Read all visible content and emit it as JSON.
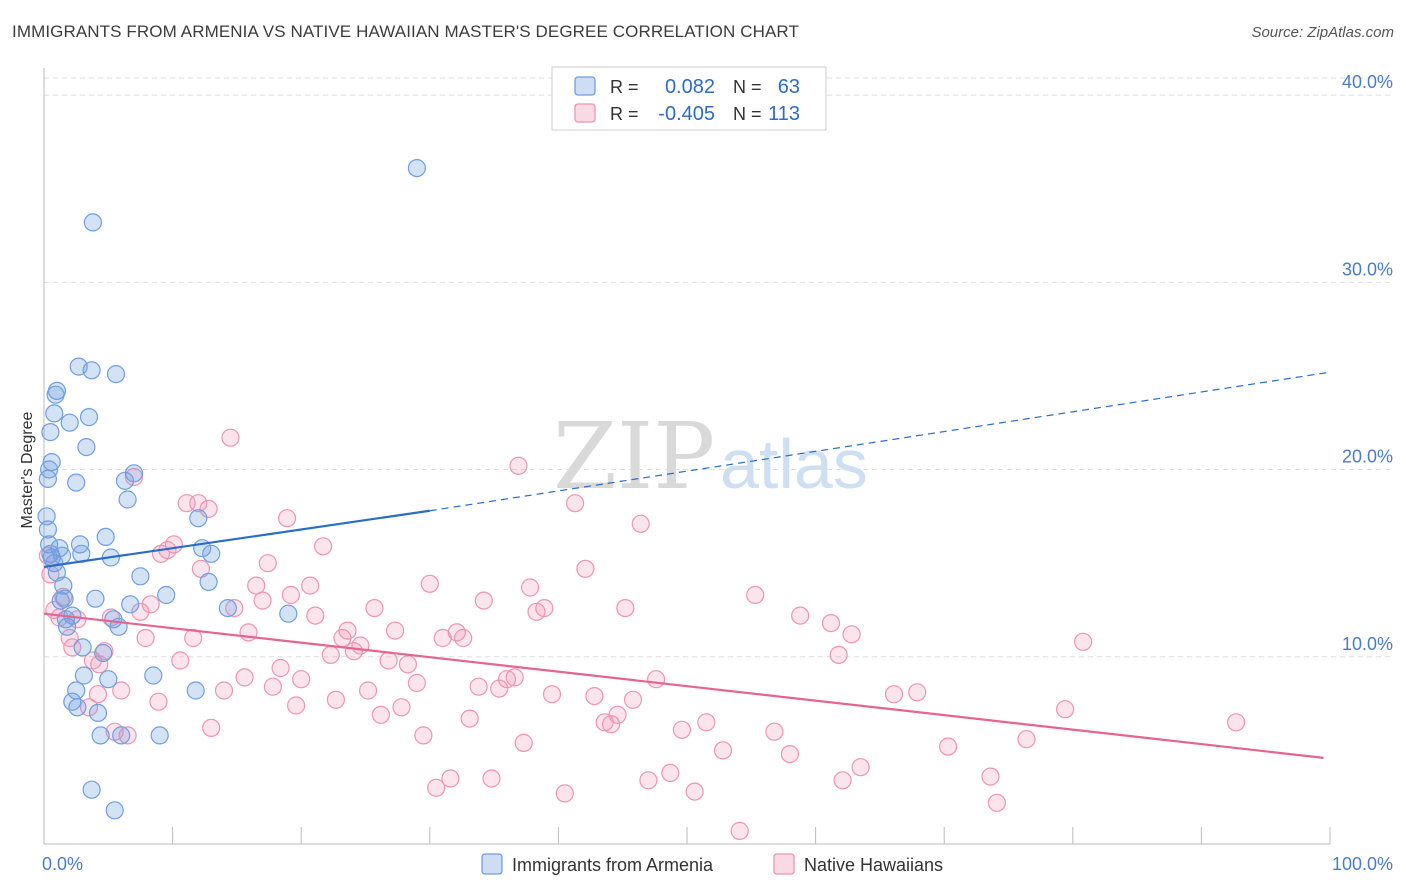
{
  "title": "IMMIGRANTS FROM ARMENIA VS NATIVE HAWAIIAN MASTER'S DEGREE CORRELATION CHART",
  "source": "Source: ZipAtlas.com",
  "watermark": {
    "zip": "ZIP",
    "atlas": "atlas"
  },
  "colors": {
    "blue": "#6f9fe0",
    "blue_line": "#2a6cc9",
    "pink": "#ef94b2",
    "pink_line": "#e56592",
    "tick": "#4a7cc9",
    "grid": "#dedede"
  },
  "chart_data": {
    "type": "scatter",
    "title": "IMMIGRANTS FROM ARMENIA VS NATIVE HAWAIIAN MASTER'S DEGREE CORRELATION CHART",
    "xlabel": "",
    "ylabel": "Master's Degree",
    "xlim": [
      0,
      100
    ],
    "ylim": [
      0,
      41.5
    ],
    "x_tick_labels": {
      "left": "0.0%",
      "right": "100.0%"
    },
    "y_ticks": [
      {
        "value": 10,
        "label": "10.0%"
      },
      {
        "value": 20,
        "label": "20.0%"
      },
      {
        "value": 30,
        "label": "30.0%"
      },
      {
        "value": 40,
        "label": "40.0%"
      }
    ],
    "grid": true,
    "legend_top": [
      {
        "r_label": "R =",
        "r_value": "0.082",
        "n_label": "N =",
        "n_value": "63"
      },
      {
        "r_label": "R =",
        "r_value": "-0.405",
        "n_label": "N =",
        "n_value": "113"
      }
    ],
    "series": [
      {
        "name": "Immigrants from Armenia",
        "trend": {
          "x0": 0,
          "y0": 14.8,
          "x1": 30,
          "y1": 17.8,
          "dash_to_x": 100,
          "dash_to_y": 25.2
        },
        "points": [
          [
            0.2,
            17.5
          ],
          [
            0.3,
            16.8
          ],
          [
            0.4,
            16.0
          ],
          [
            0.5,
            15.5
          ],
          [
            0.6,
            15.3
          ],
          [
            0.8,
            15.0
          ],
          [
            1.0,
            14.5
          ],
          [
            0.3,
            19.5
          ],
          [
            0.4,
            20.0
          ],
          [
            0.6,
            20.4
          ],
          [
            0.5,
            22.0
          ],
          [
            0.8,
            23.0
          ],
          [
            0.9,
            24.0
          ],
          [
            1.0,
            24.2
          ],
          [
            1.2,
            15.8
          ],
          [
            1.4,
            15.4
          ],
          [
            1.5,
            13.8
          ],
          [
            1.3,
            13.0
          ],
          [
            1.6,
            13.1
          ],
          [
            1.7,
            12.0
          ],
          [
            1.8,
            11.6
          ],
          [
            2.0,
            22.5
          ],
          [
            2.2,
            12.2
          ],
          [
            2.5,
            19.3
          ],
          [
            2.7,
            25.5
          ],
          [
            2.8,
            16.0
          ],
          [
            2.9,
            15.5
          ],
          [
            3.0,
            10.5
          ],
          [
            3.1,
            9.0
          ],
          [
            3.3,
            21.2
          ],
          [
            3.5,
            22.8
          ],
          [
            3.7,
            25.3
          ],
          [
            3.8,
            33.2
          ],
          [
            4.0,
            13.1
          ],
          [
            4.2,
            7.0
          ],
          [
            4.4,
            5.8
          ],
          [
            4.6,
            10.2
          ],
          [
            4.8,
            16.4
          ],
          [
            5.0,
            8.8
          ],
          [
            5.2,
            15.3
          ],
          [
            5.4,
            12.0
          ],
          [
            5.6,
            25.1
          ],
          [
            5.8,
            11.6
          ],
          [
            6.0,
            5.8
          ],
          [
            6.3,
            19.4
          ],
          [
            6.5,
            18.4
          ],
          [
            6.7,
            12.8
          ],
          [
            5.5,
            1.8
          ],
          [
            2.5,
            8.2
          ],
          [
            2.2,
            7.6
          ],
          [
            2.6,
            7.3
          ],
          [
            7.0,
            19.8
          ],
          [
            7.5,
            14.3
          ],
          [
            8.5,
            9.0
          ],
          [
            9.0,
            5.8
          ],
          [
            9.5,
            13.3
          ],
          [
            11.8,
            8.2
          ],
          [
            12.0,
            17.4
          ],
          [
            12.3,
            15.8
          ],
          [
            12.8,
            14.0
          ],
          [
            13.0,
            15.5
          ],
          [
            14.3,
            12.6
          ],
          [
            19.0,
            12.3
          ],
          [
            29.0,
            36.1
          ],
          [
            3.7,
            2.9
          ]
        ]
      },
      {
        "name": "Native Hawaiians",
        "trend": {
          "x0": 0,
          "y0": 12.3,
          "x1": 99.5,
          "y1": 4.6
        },
        "points": [
          [
            0.3,
            15.4
          ],
          [
            0.5,
            14.4
          ],
          [
            0.8,
            12.5
          ],
          [
            1.2,
            12.1
          ],
          [
            1.5,
            13.2
          ],
          [
            2.0,
            11.0
          ],
          [
            2.2,
            10.5
          ],
          [
            2.6,
            12.0
          ],
          [
            3.5,
            7.3
          ],
          [
            3.8,
            9.8
          ],
          [
            4.2,
            8.0
          ],
          [
            4.7,
            10.3
          ],
          [
            5.2,
            12.1
          ],
          [
            5.5,
            6.0
          ],
          [
            6.0,
            8.2
          ],
          [
            6.5,
            5.8
          ],
          [
            7.0,
            19.6
          ],
          [
            7.5,
            12.4
          ],
          [
            7.9,
            11.0
          ],
          [
            8.3,
            12.8
          ],
          [
            8.9,
            7.6
          ],
          [
            9.1,
            15.5
          ],
          [
            9.6,
            15.7
          ],
          [
            10.1,
            16.0
          ],
          [
            10.6,
            9.8
          ],
          [
            11.1,
            18.2
          ],
          [
            11.6,
            11.0
          ],
          [
            12.2,
            14.7
          ],
          [
            12.8,
            17.9
          ],
          [
            13.0,
            6.2
          ],
          [
            14.0,
            8.2
          ],
          [
            14.5,
            21.7
          ],
          [
            14.8,
            12.6
          ],
          [
            15.6,
            8.9
          ],
          [
            15.9,
            11.3
          ],
          [
            16.5,
            13.8
          ],
          [
            17.0,
            13.0
          ],
          [
            17.4,
            15.0
          ],
          [
            17.8,
            8.4
          ],
          [
            18.4,
            9.4
          ],
          [
            18.9,
            17.4
          ],
          [
            19.2,
            13.3
          ],
          [
            19.6,
            7.4
          ],
          [
            20.0,
            8.8
          ],
          [
            20.7,
            13.8
          ],
          [
            21.1,
            12.2
          ],
          [
            21.7,
            15.9
          ],
          [
            22.3,
            10.1
          ],
          [
            22.7,
            7.7
          ],
          [
            23.2,
            11.0
          ],
          [
            23.6,
            11.4
          ],
          [
            24.1,
            10.3
          ],
          [
            24.6,
            10.6
          ],
          [
            25.2,
            8.2
          ],
          [
            25.7,
            12.6
          ],
          [
            26.2,
            6.9
          ],
          [
            26.8,
            9.8
          ],
          [
            27.3,
            11.4
          ],
          [
            27.8,
            7.3
          ],
          [
            28.3,
            9.6
          ],
          [
            29.0,
            8.6
          ],
          [
            29.5,
            5.8
          ],
          [
            30.0,
            13.9
          ],
          [
            30.5,
            3.0
          ],
          [
            31.0,
            11.0
          ],
          [
            31.6,
            3.5
          ],
          [
            32.1,
            11.3
          ],
          [
            32.6,
            11.0
          ],
          [
            33.1,
            6.7
          ],
          [
            33.8,
            8.4
          ],
          [
            34.2,
            13.0
          ],
          [
            34.8,
            3.5
          ],
          [
            35.4,
            8.3
          ],
          [
            36.0,
            8.8
          ],
          [
            36.6,
            8.9
          ],
          [
            37.3,
            5.4
          ],
          [
            37.8,
            13.7
          ],
          [
            38.3,
            12.4
          ],
          [
            38.9,
            12.6
          ],
          [
            39.5,
            8.0
          ],
          [
            40.5,
            2.7
          ],
          [
            41.3,
            18.2
          ],
          [
            42.1,
            14.7
          ],
          [
            42.8,
            7.9
          ],
          [
            43.6,
            6.5
          ],
          [
            44.1,
            6.4
          ],
          [
            44.6,
            6.9
          ],
          [
            45.2,
            12.6
          ],
          [
            45.8,
            7.7
          ],
          [
            46.4,
            17.1
          ],
          [
            47.0,
            3.4
          ],
          [
            47.6,
            8.8
          ],
          [
            48.7,
            3.8
          ],
          [
            49.6,
            6.1
          ],
          [
            50.6,
            2.8
          ],
          [
            51.5,
            6.5
          ],
          [
            52.8,
            5.0
          ],
          [
            54.1,
            0.7
          ],
          [
            55.3,
            13.3
          ],
          [
            56.8,
            6.0
          ],
          [
            58.0,
            4.8
          ],
          [
            58.8,
            12.2
          ],
          [
            61.2,
            11.8
          ],
          [
            61.8,
            10.1
          ],
          [
            62.1,
            3.4
          ],
          [
            62.8,
            11.2
          ],
          [
            63.5,
            4.1
          ],
          [
            66.1,
            8.0
          ],
          [
            67.9,
            8.1
          ],
          [
            70.3,
            5.2
          ],
          [
            73.6,
            3.6
          ],
          [
            74.1,
            2.2
          ],
          [
            76.4,
            5.6
          ],
          [
            79.4,
            7.2
          ],
          [
            80.8,
            10.8
          ],
          [
            92.7,
            6.5
          ],
          [
            36.9,
            20.2
          ],
          [
            12.0,
            18.2
          ],
          [
            4.3,
            9.6
          ]
        ]
      }
    ],
    "legend_bottom": [
      {
        "label": "Immigrants from Armenia",
        "color": "blue"
      },
      {
        "label": "Native Hawaiians",
        "color": "pink"
      }
    ]
  }
}
